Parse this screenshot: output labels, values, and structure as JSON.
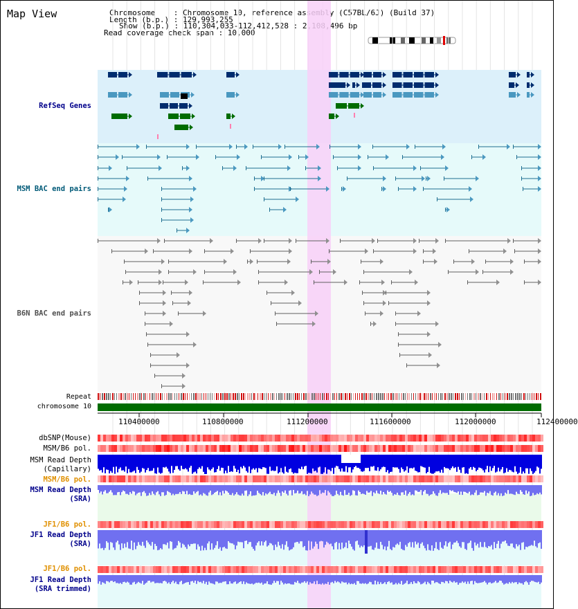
{
  "view_title": "Map View",
  "info": {
    "chromosome": "Chromosome    : Chromosome 10, reference assembly (C57BL/6J) (Build 37)",
    "length": "Length (b.p.) : 129,993,255",
    "show": "Show (b.p.) : 110,304,033-112,412,528 : 2,108,496 bp",
    "coverage": "Read coverage check span : 10,000"
  },
  "tracks": {
    "refseq": "RefSeq Genes",
    "msm_bac": "MSM BAC end pairs",
    "b6n_bac": "B6N BAC end pairs",
    "repeat": "Repeat",
    "chromosome": "chromosome 10",
    "dbsnp": "dbSNP(Mouse)",
    "msm_b6_pol": "MSM/B6 pol.",
    "msm_read_cap_1": "MSM Read Depth",
    "msm_read_cap_2": "(Capillary)",
    "msm_b6_pol_2": "MSM/B6 pol.",
    "msm_read_sra_1": "MSM Read Depth",
    "msm_read_sra_2": "(SRA)",
    "jf1_b6_pol": "JF1/B6 pol.",
    "jf1_read_sra_1": "JF1 Read Depth",
    "jf1_read_sra_2": "(SRA)",
    "jf1_b6_pol_2": "JF1/B6 pol.",
    "jf1_read_trim_1": "JF1 Read Depth",
    "jf1_read_trim_2": "(SRA trimmed)"
  },
  "axis_ticks": [
    "110400000",
    "110800000",
    "111200000",
    "111600000",
    "112000000",
    "112400000"
  ],
  "colors": {
    "refseq_bg": "#dcf0fa",
    "msm_bg": "#e6fafa",
    "b6n_bg": "#f8f8f8",
    "highlight": "#f8d0f8",
    "navy": "#002c6e",
    "steel": "#4a98c0",
    "green": "#006c00",
    "depth_blue": "#0000e0",
    "depth_light": "#7070f0",
    "label_navy": "#00008b",
    "label_teal": "#005a78",
    "label_gray": "#505050",
    "label_orange": "#e09000"
  }
}
